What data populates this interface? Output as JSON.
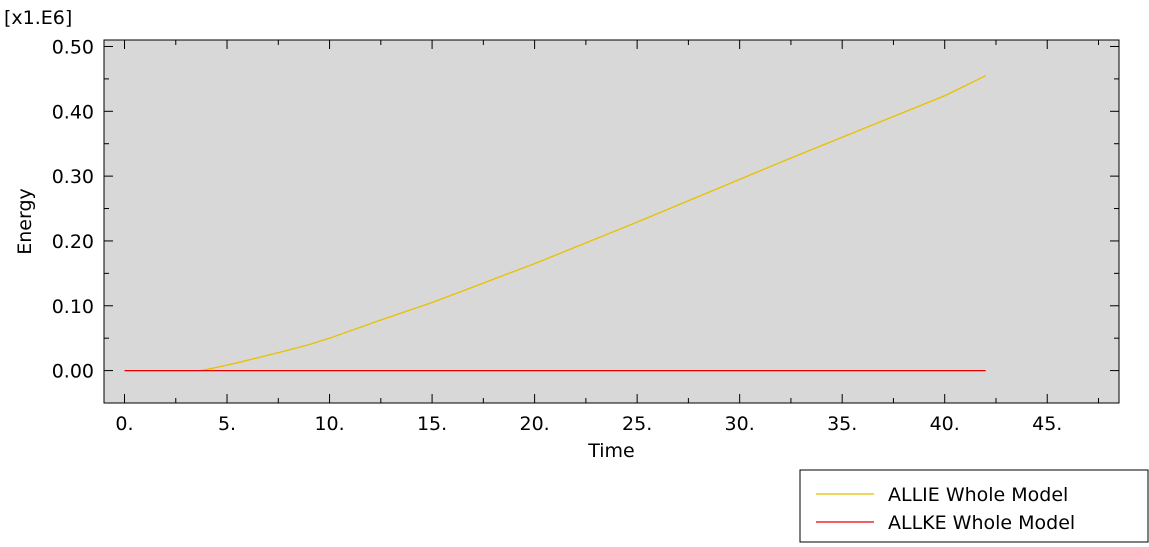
{
  "chart_data": {
    "type": "line",
    "title": "",
    "xlabel": "Time",
    "ylabel": "Energy",
    "y_multiplier_label": "[x1.E6]",
    "xlim": [
      -1,
      48.5
    ],
    "ylim": [
      -0.05,
      0.51
    ],
    "x_ticks": [
      0,
      5,
      10,
      15,
      20,
      25,
      30,
      35,
      40,
      45
    ],
    "x_tick_labels": [
      "0.",
      "5.",
      "10.",
      "15.",
      "20.",
      "25.",
      "30.",
      "35.",
      "40.",
      "45."
    ],
    "y_ticks": [
      0,
      0.1,
      0.2,
      0.3,
      0.4,
      0.5
    ],
    "y_tick_labels": [
      "0.00",
      "0.10",
      "0.20",
      "0.30",
      "0.40",
      "0.50"
    ],
    "grid": false,
    "legend_position": "bottom-right",
    "plot_background": "#d8d8d8",
    "series": [
      {
        "name": "ALLIE Whole Model",
        "color": "#e8c000",
        "x": [
          0,
          3.7,
          4.5,
          5.5,
          7.8,
          9,
          10,
          12.5,
          15,
          17.5,
          20,
          22.5,
          25,
          27.5,
          30,
          32.5,
          35,
          37.5,
          40,
          42
        ],
        "y": [
          0,
          0,
          0.005,
          0.012,
          0.03,
          0.04,
          0.05,
          0.078,
          0.105,
          0.135,
          0.165,
          0.197,
          0.229,
          0.262,
          0.295,
          0.328,
          0.36,
          0.392,
          0.424,
          0.455
        ]
      },
      {
        "name": "ALLKE Whole Model",
        "color": "#e80000",
        "x": [
          0,
          42
        ],
        "y": [
          0,
          0
        ]
      }
    ]
  }
}
